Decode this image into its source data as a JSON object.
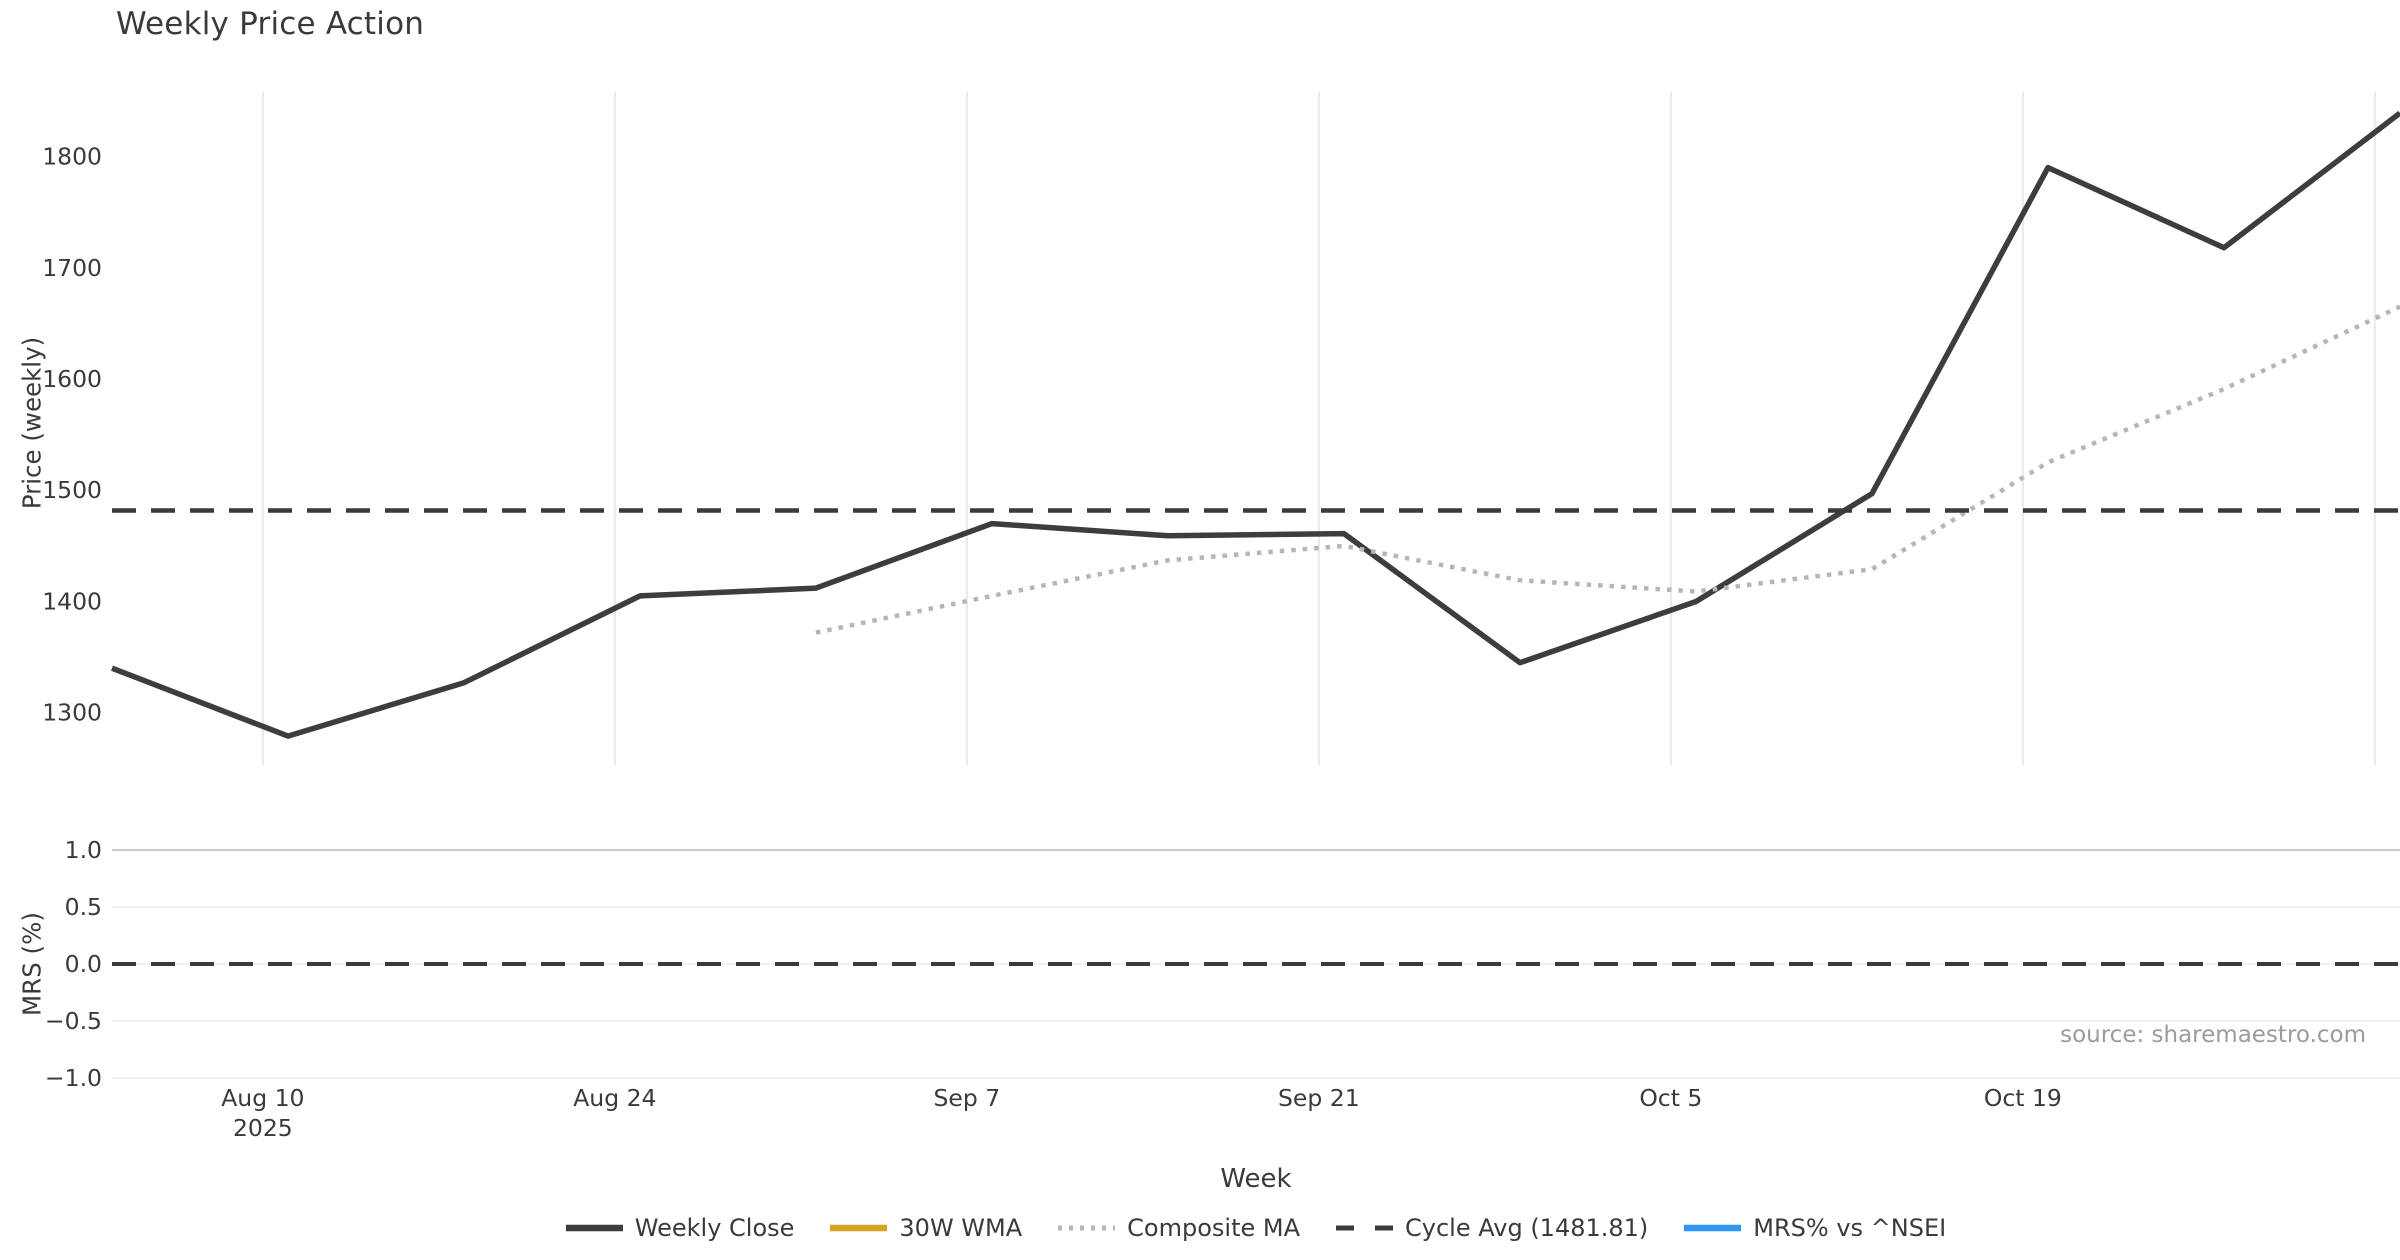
{
  "source_note": "source: sharemaestro.com",
  "axes": {
    "price_ylabel": "Price (weekly)",
    "mrs_ylabel": "MRS (%)",
    "xlabel": "Week"
  },
  "colors": {
    "text": "#3a3a3a",
    "vertical_grid": "#e8e8e8",
    "horizontal_grid_faint": "#edf1f4",
    "horizontal_grid_strong": "#cbcbcb",
    "weekly_close": "#3d3d3d",
    "wma_30w": "#d5a421",
    "composite_ma": "#b6b6b6",
    "cycle_avg": "#3a3a3a",
    "mrs_line": "#2f96f3",
    "source_text": "#9b9b9b"
  },
  "legend": [
    {
      "label": "Weekly Close",
      "style": "solid",
      "color": "#3d3d3d"
    },
    {
      "label": "30W WMA",
      "style": "solid",
      "color": "#d5a421"
    },
    {
      "label": "Composite MA",
      "style": "dotted",
      "color": "#b6b6b6"
    },
    {
      "label": "Cycle Avg (1481.81)",
      "style": "dashed",
      "color": "#3a3a3a"
    },
    {
      "label": "MRS% vs ^NSEI",
      "style": "solid",
      "color": "#2f96f3"
    }
  ],
  "chart_data": [
    {
      "type": "line",
      "panel": "price",
      "title": "Weekly Price Action",
      "ylabel": "Price (weekly)",
      "xlabel": "Week",
      "grid": "vertical-only",
      "legend_position": "bottom-center",
      "x_dates": [
        "2025-08-04",
        "2025-08-11",
        "2025-08-18",
        "2025-08-25",
        "2025-09-01",
        "2025-09-08",
        "2025-09-15",
        "2025-09-22",
        "2025-09-29",
        "2025-10-06",
        "2025-10-13",
        "2025-10-20",
        "2025-10-27",
        "2025-11-03"
      ],
      "x_days": [
        0,
        7,
        14,
        21,
        28,
        35,
        42,
        49,
        56,
        63,
        70,
        77,
        84,
        91
      ],
      "xlim_days": [
        0,
        91
      ],
      "ylim": [
        1253,
        1858
      ],
      "yticks": [
        {
          "value": 1300,
          "label": "1300"
        },
        {
          "value": 1400,
          "label": "1400"
        },
        {
          "value": 1500,
          "label": "1500"
        },
        {
          "value": 1600,
          "label": "1600"
        },
        {
          "value": 1700,
          "label": "1700"
        },
        {
          "value": 1800,
          "label": "1800"
        }
      ],
      "xticks": [
        {
          "day": 6,
          "lines": [
            "Aug 10",
            "2025"
          ]
        },
        {
          "day": 20,
          "lines": [
            "Aug 24"
          ]
        },
        {
          "day": 34,
          "lines": [
            "Sep 7"
          ]
        },
        {
          "day": 48,
          "lines": [
            "Sep 21"
          ]
        },
        {
          "day": 62,
          "lines": [
            "Oct 5"
          ]
        },
        {
          "day": 76,
          "lines": [
            "Oct 19"
          ]
        },
        {
          "day": 90,
          "lines": []
        }
      ],
      "series": [
        {
          "name": "Weekly Close",
          "style": "solid",
          "color": "#3d3d3d",
          "width": 5.5,
          "values": [
            1340,
            1279,
            1327,
            1405,
            1412,
            1470,
            1459,
            1461,
            1345,
            1400,
            1497,
            1790,
            1718,
            1839
          ]
        },
        {
          "name": "30W WMA",
          "style": "solid",
          "color": "#d5a421",
          "width": 4.5,
          "values": []
        },
        {
          "name": "Composite MA",
          "style": "dotted",
          "color": "#b6b6b6",
          "width": 4.5,
          "values": [
            null,
            null,
            null,
            null,
            1372,
            1405,
            1437,
            1450,
            1419,
            1409,
            1429,
            1525,
            1591,
            1665
          ]
        },
        {
          "name": "Cycle Avg (1481.81)",
          "style": "dashed",
          "color": "#3a3a3a",
          "width": 4.5,
          "const_value": 1481.81
        },
        {
          "name": "MRS% vs ^NSEI",
          "style": "solid",
          "color": "#2f96f3",
          "width": 4.5,
          "values": []
        }
      ]
    },
    {
      "type": "line",
      "panel": "mrs",
      "ylabel": "MRS (%)",
      "grid": "horizontal-only",
      "ylim": [
        -1.0,
        1.0
      ],
      "yticks": [
        {
          "value": 1.0,
          "label": "1.0"
        },
        {
          "value": 0.5,
          "label": "0.5"
        },
        {
          "value": 0.0,
          "label": "0.0"
        },
        {
          "value": -0.5,
          "label": "−0.5"
        },
        {
          "value": -1.0,
          "label": "−1.0"
        }
      ],
      "zero_line": {
        "value": 0.0,
        "style": "dashed",
        "color": "#3a3a3a"
      },
      "series": []
    }
  ]
}
